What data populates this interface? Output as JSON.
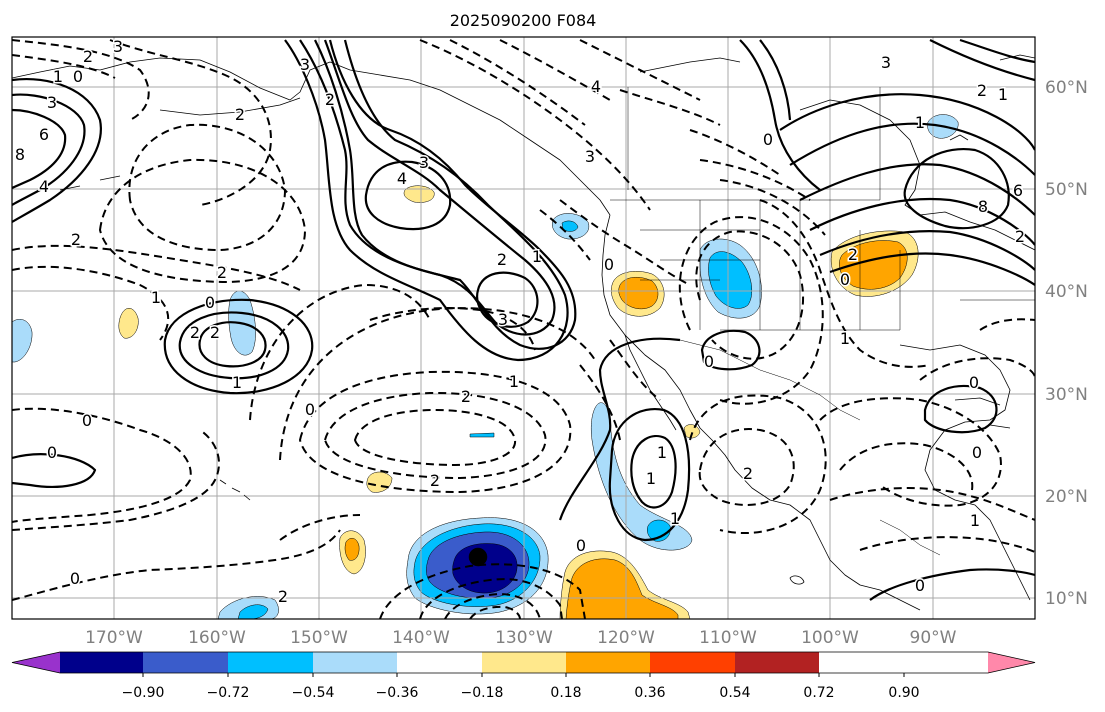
{
  "title": "2025090200 F084",
  "map": {
    "lat_ticks": [
      "60°N",
      "50°N",
      "40°N",
      "30°N",
      "20°N",
      "10°N"
    ],
    "lon_ticks": [
      "170°W",
      "160°W",
      "150°W",
      "140°W",
      "130°W",
      "120°W",
      "110°W",
      "100°W",
      "90°W"
    ],
    "contour_labels": [
      "2",
      "3",
      "1",
      "0",
      "3",
      "6",
      "8",
      "4",
      "2",
      "2",
      "3",
      "2",
      "3",
      "4",
      "3",
      "2",
      "3",
      "1",
      "4",
      "2",
      "1",
      "0",
      "1",
      "0",
      "2",
      "2",
      "1",
      "0",
      "0",
      "2",
      "1",
      "1",
      "2",
      "2",
      "0",
      "0",
      "2",
      "0",
      "0",
      "1",
      "0",
      "2",
      "0",
      "3",
      "2",
      "1",
      "1",
      "6",
      "8",
      "2",
      "0",
      "1",
      "1",
      "0",
      "0"
    ],
    "shading_levels": [
      -0.9,
      -0.72,
      -0.54,
      -0.36,
      -0.18,
      0.18,
      0.36,
      0.54,
      0.72,
      0.9
    ]
  },
  "colorbar": {
    "colors": [
      "#9932cc",
      "#00008b",
      "#3a5ccb",
      "#00bfff",
      "#aadcfa",
      "#ffffff",
      "#ffe88c",
      "#ffa500",
      "#ff4000",
      "#b22222",
      "#ff88aa"
    ],
    "tick_labels": [
      "−0.90",
      "−0.72",
      "−0.54",
      "−0.36",
      "−0.18",
      "0.18",
      "0.36",
      "0.54",
      "0.72",
      "0.90"
    ]
  }
}
